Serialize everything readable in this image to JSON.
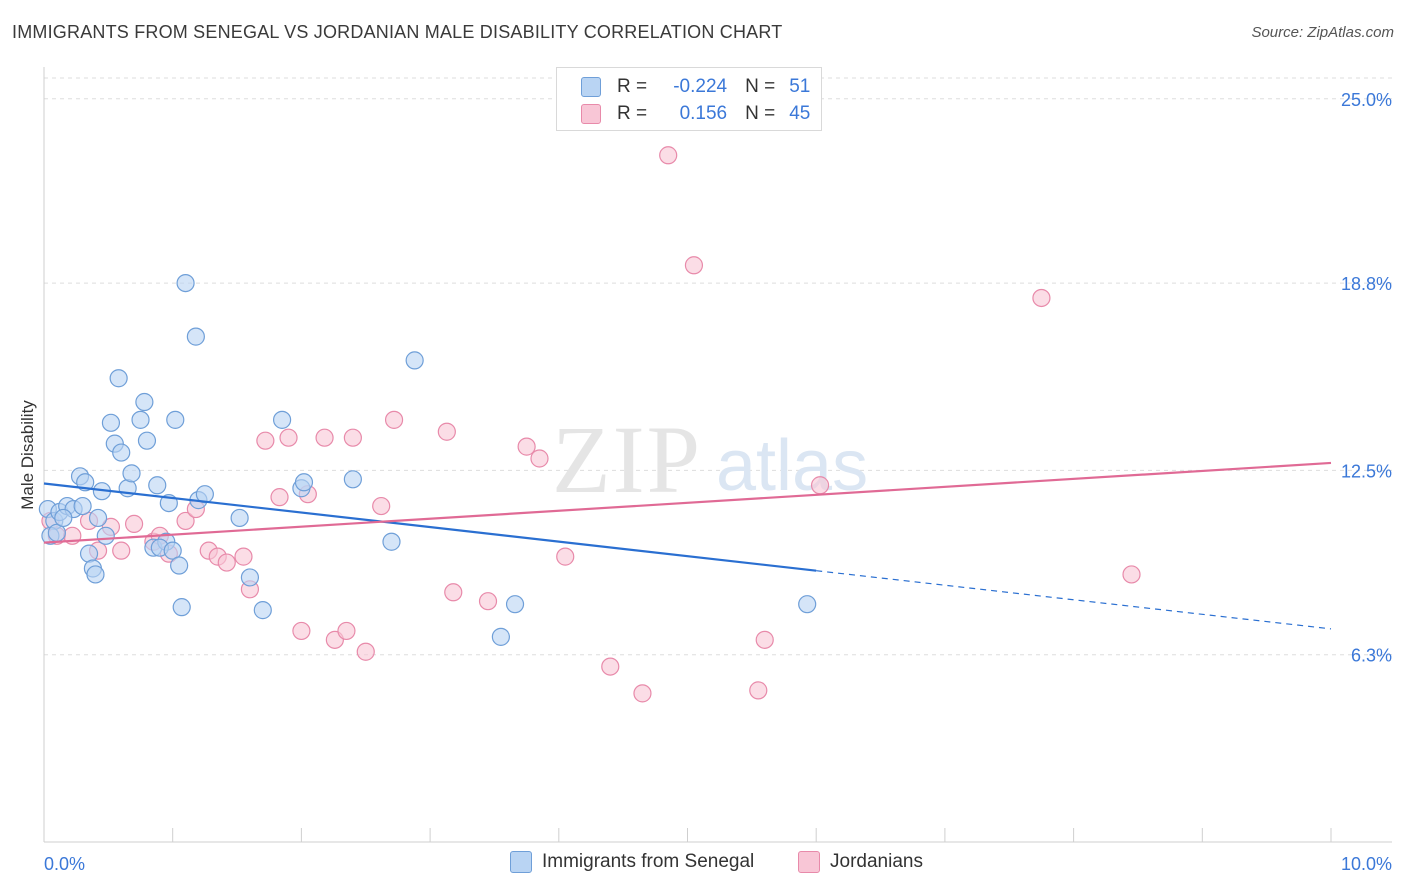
{
  "title": "IMMIGRANTS FROM SENEGAL VS JORDANIAN MALE DISABILITY CORRELATION CHART",
  "source": "Source: ZipAtlas.com",
  "watermark": {
    "zip": "ZIP",
    "atlas": "atlas"
  },
  "colors": {
    "senegal_fill": "#b9d4f3",
    "senegal_stroke": "#6f9fd8",
    "senegal_line": "#2a6fd1",
    "jordan_fill": "#f8c6d6",
    "jordan_stroke": "#e88aaa",
    "jordan_line": "#e06a95",
    "axis_label": "#3b78d8",
    "grid": "#dddddd"
  },
  "legend": {
    "r_label": "R =",
    "n_label": "N =",
    "senegal": {
      "r": "-0.224",
      "n": "51"
    },
    "jordan": {
      "r": "0.156",
      "n": "45"
    }
  },
  "chart_data": {
    "type": "scatter",
    "title": "IMMIGRANTS FROM SENEGAL VS JORDANIAN MALE DISABILITY CORRELATION CHART",
    "xlabel": "",
    "ylabel": "Male Disability",
    "xlim": [
      0,
      10
    ],
    "ylim": [
      0,
      25.8
    ],
    "x_tick_labels": [
      "0.0%",
      "10.0%"
    ],
    "y_ticks": [
      6.3,
      12.5,
      18.8,
      25.0
    ],
    "y_tick_labels": [
      "6.3%",
      "12.5%",
      "18.8%",
      "25.0%"
    ],
    "legend_position": "top-center",
    "series": [
      {
        "name": "Immigrants from Senegal",
        "points": [
          [
            0.03,
            11.2
          ],
          [
            0.08,
            10.8
          ],
          [
            0.12,
            11.1
          ],
          [
            0.18,
            11.3
          ],
          [
            0.23,
            11.2
          ],
          [
            0.05,
            10.3
          ],
          [
            0.1,
            10.4
          ],
          [
            0.15,
            10.9
          ],
          [
            0.28,
            12.3
          ],
          [
            0.32,
            12.1
          ],
          [
            0.35,
            9.7
          ],
          [
            0.38,
            9.2
          ],
          [
            0.4,
            9.0
          ],
          [
            0.42,
            10.9
          ],
          [
            0.45,
            11.8
          ],
          [
            0.48,
            10.3
          ],
          [
            0.52,
            14.1
          ],
          [
            0.55,
            13.4
          ],
          [
            0.6,
            13.1
          ],
          [
            0.65,
            11.9
          ],
          [
            0.68,
            12.4
          ],
          [
            0.58,
            15.6
          ],
          [
            0.75,
            14.2
          ],
          [
            0.78,
            14.8
          ],
          [
            0.8,
            13.5
          ],
          [
            0.85,
            9.9
          ],
          [
            0.88,
            12.0
          ],
          [
            0.95,
            10.1
          ],
          [
            0.9,
            9.9
          ],
          [
            0.97,
            11.4
          ],
          [
            1.0,
            9.8
          ],
          [
            1.02,
            14.2
          ],
          [
            1.05,
            9.3
          ],
          [
            1.07,
            7.9
          ],
          [
            1.1,
            18.8
          ],
          [
            1.18,
            17.0
          ],
          [
            1.2,
            11.5
          ],
          [
            1.25,
            11.7
          ],
          [
            1.52,
            10.9
          ],
          [
            1.6,
            8.9
          ],
          [
            1.7,
            7.8
          ],
          [
            1.85,
            14.2
          ],
          [
            2.0,
            11.9
          ],
          [
            2.02,
            12.1
          ],
          [
            2.4,
            12.2
          ],
          [
            2.7,
            10.1
          ],
          [
            2.88,
            16.2
          ],
          [
            3.55,
            6.9
          ],
          [
            3.66,
            8.0
          ],
          [
            5.93,
            8.0
          ],
          [
            0.3,
            11.3
          ]
        ],
        "trend": {
          "x0": 0.0,
          "y0": 12.06,
          "x1": 10.0,
          "y1": 7.17,
          "solid_until_x": 6.0
        }
      },
      {
        "name": "Jordanians",
        "points": [
          [
            0.05,
            10.8
          ],
          [
            0.1,
            10.3
          ],
          [
            0.22,
            10.3
          ],
          [
            0.35,
            10.8
          ],
          [
            0.42,
            9.8
          ],
          [
            0.52,
            10.6
          ],
          [
            0.6,
            9.8
          ],
          [
            0.7,
            10.7
          ],
          [
            0.85,
            10.1
          ],
          [
            0.9,
            10.3
          ],
          [
            0.97,
            9.7
          ],
          [
            1.1,
            10.8
          ],
          [
            1.18,
            11.2
          ],
          [
            1.28,
            9.8
          ],
          [
            1.35,
            9.6
          ],
          [
            1.42,
            9.4
          ],
          [
            1.55,
            9.6
          ],
          [
            1.6,
            8.5
          ],
          [
            1.72,
            13.5
          ],
          [
            1.83,
            11.6
          ],
          [
            1.9,
            13.6
          ],
          [
            2.0,
            7.1
          ],
          [
            2.05,
            11.7
          ],
          [
            2.18,
            13.6
          ],
          [
            2.26,
            6.8
          ],
          [
            2.35,
            7.1
          ],
          [
            2.4,
            13.6
          ],
          [
            2.5,
            6.4
          ],
          [
            2.62,
            11.3
          ],
          [
            2.72,
            14.2
          ],
          [
            3.13,
            13.8
          ],
          [
            3.18,
            8.4
          ],
          [
            3.45,
            8.1
          ],
          [
            3.75,
            13.3
          ],
          [
            3.85,
            12.9
          ],
          [
            4.05,
            9.6
          ],
          [
            4.4,
            5.9
          ],
          [
            4.65,
            5.0
          ],
          [
            4.85,
            23.1
          ],
          [
            5.05,
            19.4
          ],
          [
            5.55,
            5.1
          ],
          [
            5.6,
            6.8
          ],
          [
            6.03,
            12.0
          ],
          [
            7.75,
            18.3
          ],
          [
            8.45,
            9.0
          ]
        ],
        "trend": {
          "x0": 0.0,
          "y0": 10.07,
          "x1": 10.0,
          "y1": 12.75,
          "solid_until_x": 10.0
        }
      }
    ]
  },
  "bottom_legend": [
    "Immigrants from Senegal",
    "Jordanians"
  ]
}
